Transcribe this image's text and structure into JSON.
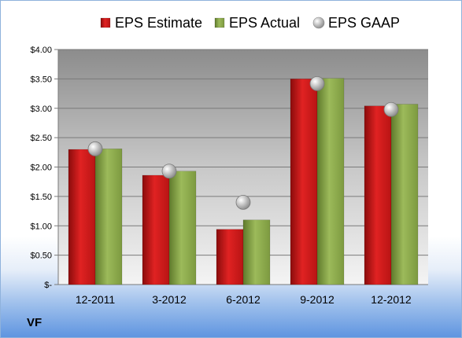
{
  "ticker": "VF",
  "chart_data": {
    "type": "bar",
    "categories": [
      "12-2011",
      "3-2012",
      "6-2012",
      "9-2012",
      "12-2012"
    ],
    "series": [
      {
        "name": "EPS Estimate",
        "kind": "bar",
        "color": "#d01818",
        "values": [
          2.3,
          1.86,
          0.94,
          3.5,
          3.04
        ]
      },
      {
        "name": "EPS Actual",
        "kind": "bar",
        "color": "#8aa84a",
        "values": [
          2.31,
          1.93,
          1.1,
          3.51,
          3.07
        ]
      },
      {
        "name": "EPS GAAP",
        "kind": "marker",
        "color": "#c8c8c8",
        "values": [
          2.31,
          1.93,
          1.4,
          3.42,
          2.98
        ]
      }
    ],
    "ylim": [
      0,
      4
    ],
    "yticks": [
      {
        "value": 4.0,
        "label": "$4.00"
      },
      {
        "value": 3.5,
        "label": "$3.50"
      },
      {
        "value": 3.0,
        "label": "$3.00"
      },
      {
        "value": 2.5,
        "label": "$2.50"
      },
      {
        "value": 2.0,
        "label": "$2.00"
      },
      {
        "value": 1.5,
        "label": "$1.50"
      },
      {
        "value": 1.0,
        "label": "$1.00"
      },
      {
        "value": 0.5,
        "label": "$0.50"
      },
      {
        "value": 0.0,
        "label": "$-"
      }
    ],
    "grid": true,
    "legend": "top-center"
  }
}
